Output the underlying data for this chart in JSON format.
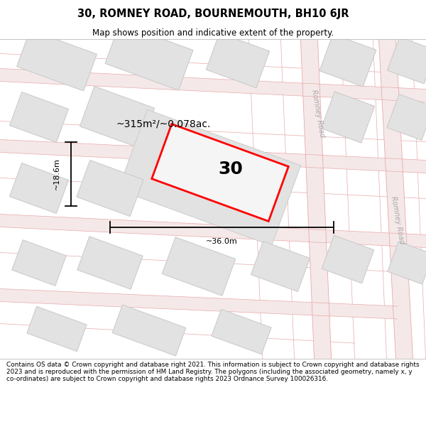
{
  "title": "30, ROMNEY ROAD, BOURNEMOUTH, BH10 6JR",
  "subtitle": "Map shows position and indicative extent of the property.",
  "footer": "Contains OS data © Crown copyright and database right 2021. This information is subject to Crown copyright and database rights 2023 and is reproduced with the permission of HM Land Registry. The polygons (including the associated geometry, namely x, y co-ordinates) are subject to Crown copyright and database rights 2023 Ordnance Survey 100026316.",
  "map_bg": "#f9f9f9",
  "road_line_color": "#e8aaaa",
  "road_fill_color": "#f5e8e8",
  "block_fill": "#e2e2e2",
  "block_stroke": "#cccccc",
  "highlight_stroke": "#ff0000",
  "road_label": "Romney Road",
  "property_number": "30",
  "area_label": "~315m²/~0.078ac.",
  "width_label": "~36.0m",
  "height_label": "~18.6m",
  "fig_width": 6.0,
  "fig_height": 6.25,
  "dpi": 100
}
